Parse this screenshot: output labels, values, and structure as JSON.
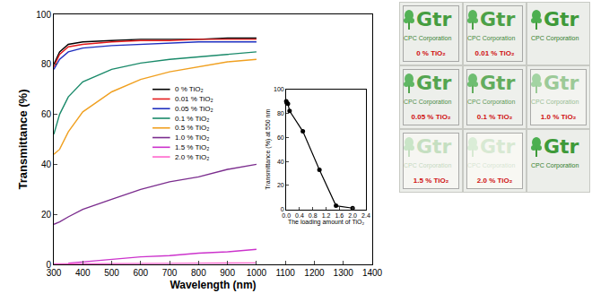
{
  "chart_data": [
    {
      "type": "line",
      "xlabel": "Wavelength (nm)",
      "ylabel": "Transmittance (%)",
      "x": [
        300,
        320,
        350,
        400,
        500,
        600,
        700,
        800,
        900,
        1000
      ],
      "series": [
        {
          "name": "0 % TiO₂",
          "color": "#000000",
          "values": [
            80,
            85,
            88,
            89,
            89.5,
            90,
            90,
            90,
            90.5,
            90.5
          ]
        },
        {
          "name": "0.01 % TiO₂",
          "color": "#e41a1c",
          "values": [
            79,
            84,
            87,
            88,
            89,
            89.5,
            89.5,
            90,
            90,
            90
          ]
        },
        {
          "name": "0.05 % TiO₂",
          "color": "#1f2fbf",
          "values": [
            78,
            82,
            85,
            86.5,
            87.5,
            88,
            88.5,
            89,
            89,
            89
          ]
        },
        {
          "name": "0.1 % TiO₂",
          "color": "#1a8a6a",
          "values": [
            52,
            60,
            67,
            73,
            78,
            80.5,
            82,
            83,
            84,
            85
          ]
        },
        {
          "name": "0.5 % TiO₂",
          "color": "#f0a020",
          "values": [
            44,
            46,
            53,
            61,
            69,
            74,
            77,
            79,
            81,
            82
          ]
        },
        {
          "name": "1.0 % TiO₂",
          "color": "#7b2d8e",
          "values": [
            16,
            17,
            19,
            22,
            26,
            30,
            33,
            35,
            38,
            40
          ]
        },
        {
          "name": "1.5 % TiO₂",
          "color": "#cc33cc",
          "values": [
            null,
            null,
            0.5,
            1,
            2,
            3,
            3.5,
            4.5,
            5,
            6
          ]
        },
        {
          "name": "2.0 % TiO₂",
          "color": "#ff66cc",
          "values": [
            0.2,
            0.2,
            0.2,
            0.3,
            0.3,
            0.4,
            0.4,
            0.5,
            0.5,
            0.6
          ]
        }
      ],
      "xlim": [
        300,
        1400
      ],
      "xticks": [
        300,
        400,
        500,
        600,
        700,
        800,
        900,
        1000,
        1100,
        1200,
        1300,
        1400
      ],
      "ylim": [
        0,
        100
      ],
      "yticks": [
        0,
        20,
        40,
        60,
        80,
        100
      ],
      "grid": false,
      "legend": "center"
    },
    {
      "type": "line",
      "xlabel": "The loading amount of TiO₂",
      "ylabel": "Transmittance (%) at 550 nm",
      "x": [
        0,
        0.01,
        0.05,
        0.1,
        0.5,
        1.0,
        1.5,
        2.0
      ],
      "values": [
        90,
        89,
        88,
        82,
        65,
        33,
        3,
        1
      ],
      "color": "#000000",
      "marker": "circle",
      "xlim": [
        0,
        2.4
      ],
      "xticks": [
        {
          "value": 0,
          "label": "0.0"
        },
        0.4,
        0.8,
        1.2,
        1.6,
        {
          "value": 2,
          "label": "2.0"
        },
        2.4
      ],
      "ylim": [
        0,
        100
      ],
      "yticks": [
        0,
        20,
        40,
        60,
        80,
        100
      ],
      "grid": false
    }
  ],
  "photo": {
    "logo": "Gtr",
    "caption": "CPC Corporation",
    "rows": [
      [
        "0 % TiO₂",
        "0.01 % TiO₂"
      ],
      [
        "0.05 % TiO₂",
        "0.1 % TiO₂",
        "1.0 % TiO₂"
      ],
      [
        "1.5 % TiO₂",
        "2.0 % TiO₂"
      ]
    ]
  }
}
